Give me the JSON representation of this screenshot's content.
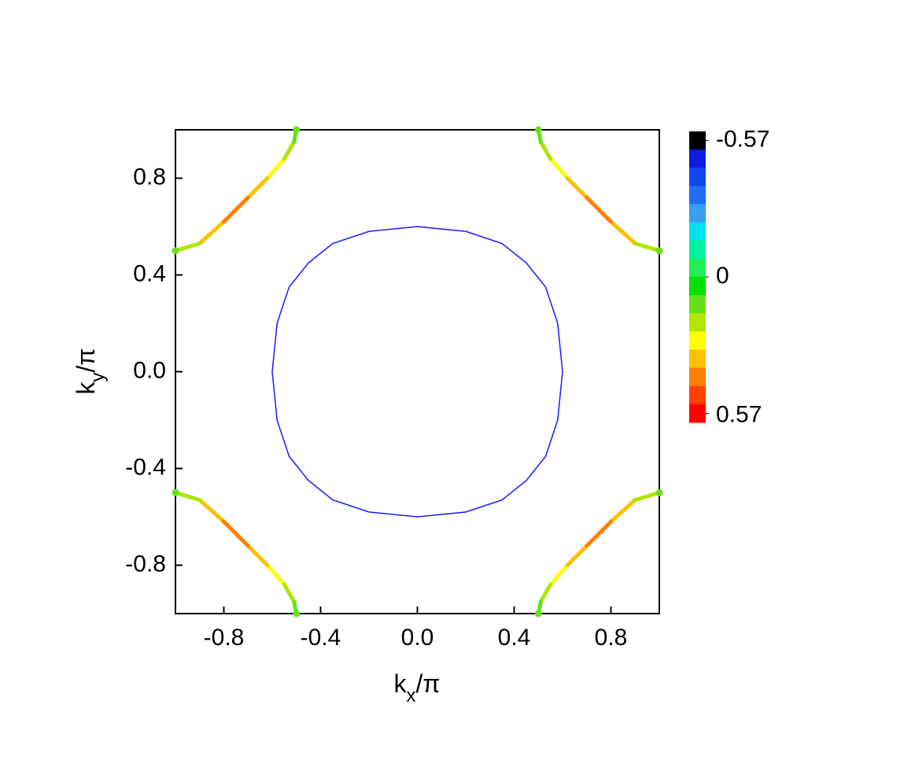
{
  "chart_data": {
    "type": "contour",
    "xlabel": "kx/π",
    "ylabel": "ky/π",
    "xlim": [
      -1,
      1
    ],
    "ylim": [
      -1,
      1
    ],
    "xticks": [
      -0.8,
      -0.4,
      {
        "value": 0,
        "label": "0.0"
      },
      0.4,
      0.8
    ],
    "yticks": [
      -0.8,
      -0.4,
      {
        "value": 0,
        "label": "0.0"
      },
      0.4,
      0.8
    ],
    "colorbar": {
      "lim": [
        -0.57,
        0.57
      ],
      "ticks": [
        -0.57,
        0,
        0.57
      ],
      "colors": [
        "#000000",
        "#0b1de0",
        "#1048ef",
        "#1f6ff5",
        "#3a9ef5",
        "#00e0f0",
        "#00f0a0",
        "#22ee55",
        "#00e000",
        "#66e01a",
        "#b0e600",
        "#ffff00",
        "#ffc000",
        "#ff8000",
        "#ff4000",
        "#ff0000"
      ]
    },
    "series": [
      {
        "color": "#1a1aff",
        "x": [
          0,
          0.2,
          0.35,
          0.45,
          0.53,
          0.58,
          0.6,
          0.58,
          0.53,
          0.45,
          0.35,
          0.2,
          0,
          -0.2,
          -0.35,
          -0.45,
          -0.53,
          -0.58,
          -0.6,
          -0.58,
          -0.53,
          -0.45,
          -0.35,
          -0.2,
          0
        ],
        "y": [
          0.6,
          0.58,
          0.53,
          0.45,
          0.35,
          0.2,
          0,
          -0.2,
          -0.35,
          -0.45,
          -0.53,
          -0.58,
          -0.6,
          -0.58,
          -0.53,
          -0.45,
          -0.35,
          -0.2,
          0,
          0.2,
          0.35,
          0.45,
          0.53,
          0.58,
          0.6
        ]
      },
      {
        "x": [
          -1,
          -0.9,
          -0.8,
          -0.7,
          -0.62,
          -0.55,
          -0.51,
          -0.5
        ],
        "y": [
          0.5,
          0.53,
          0.62,
          0.72,
          0.8,
          0.88,
          0.95,
          1
        ],
        "c": [
          0.12,
          0.2,
          0.38,
          0.4,
          0.3,
          0.2,
          0.12,
          0.1
        ]
      },
      {
        "x": [
          1,
          0.9,
          0.8,
          0.7,
          0.62,
          0.55,
          0.51,
          0.5
        ],
        "y": [
          0.5,
          0.53,
          0.62,
          0.72,
          0.8,
          0.88,
          0.95,
          1
        ],
        "c": [
          0.12,
          0.2,
          0.38,
          0.4,
          0.3,
          0.2,
          0.12,
          0.1
        ]
      },
      {
        "x": [
          -1,
          -0.9,
          -0.8,
          -0.7,
          -0.62,
          -0.55,
          -0.51,
          -0.5
        ],
        "y": [
          -0.5,
          -0.53,
          -0.62,
          -0.72,
          -0.8,
          -0.88,
          -0.95,
          -1
        ],
        "c": [
          0.12,
          0.2,
          0.38,
          0.4,
          0.3,
          0.2,
          0.12,
          0.1
        ]
      },
      {
        "x": [
          1,
          0.9,
          0.8,
          0.7,
          0.62,
          0.55,
          0.51,
          0.5
        ],
        "y": [
          -0.5,
          -0.53,
          -0.62,
          -0.72,
          -0.8,
          -0.88,
          -0.95,
          -1
        ],
        "c": [
          0.12,
          0.2,
          0.38,
          0.4,
          0.3,
          0.2,
          0.12,
          0.1
        ]
      }
    ]
  }
}
